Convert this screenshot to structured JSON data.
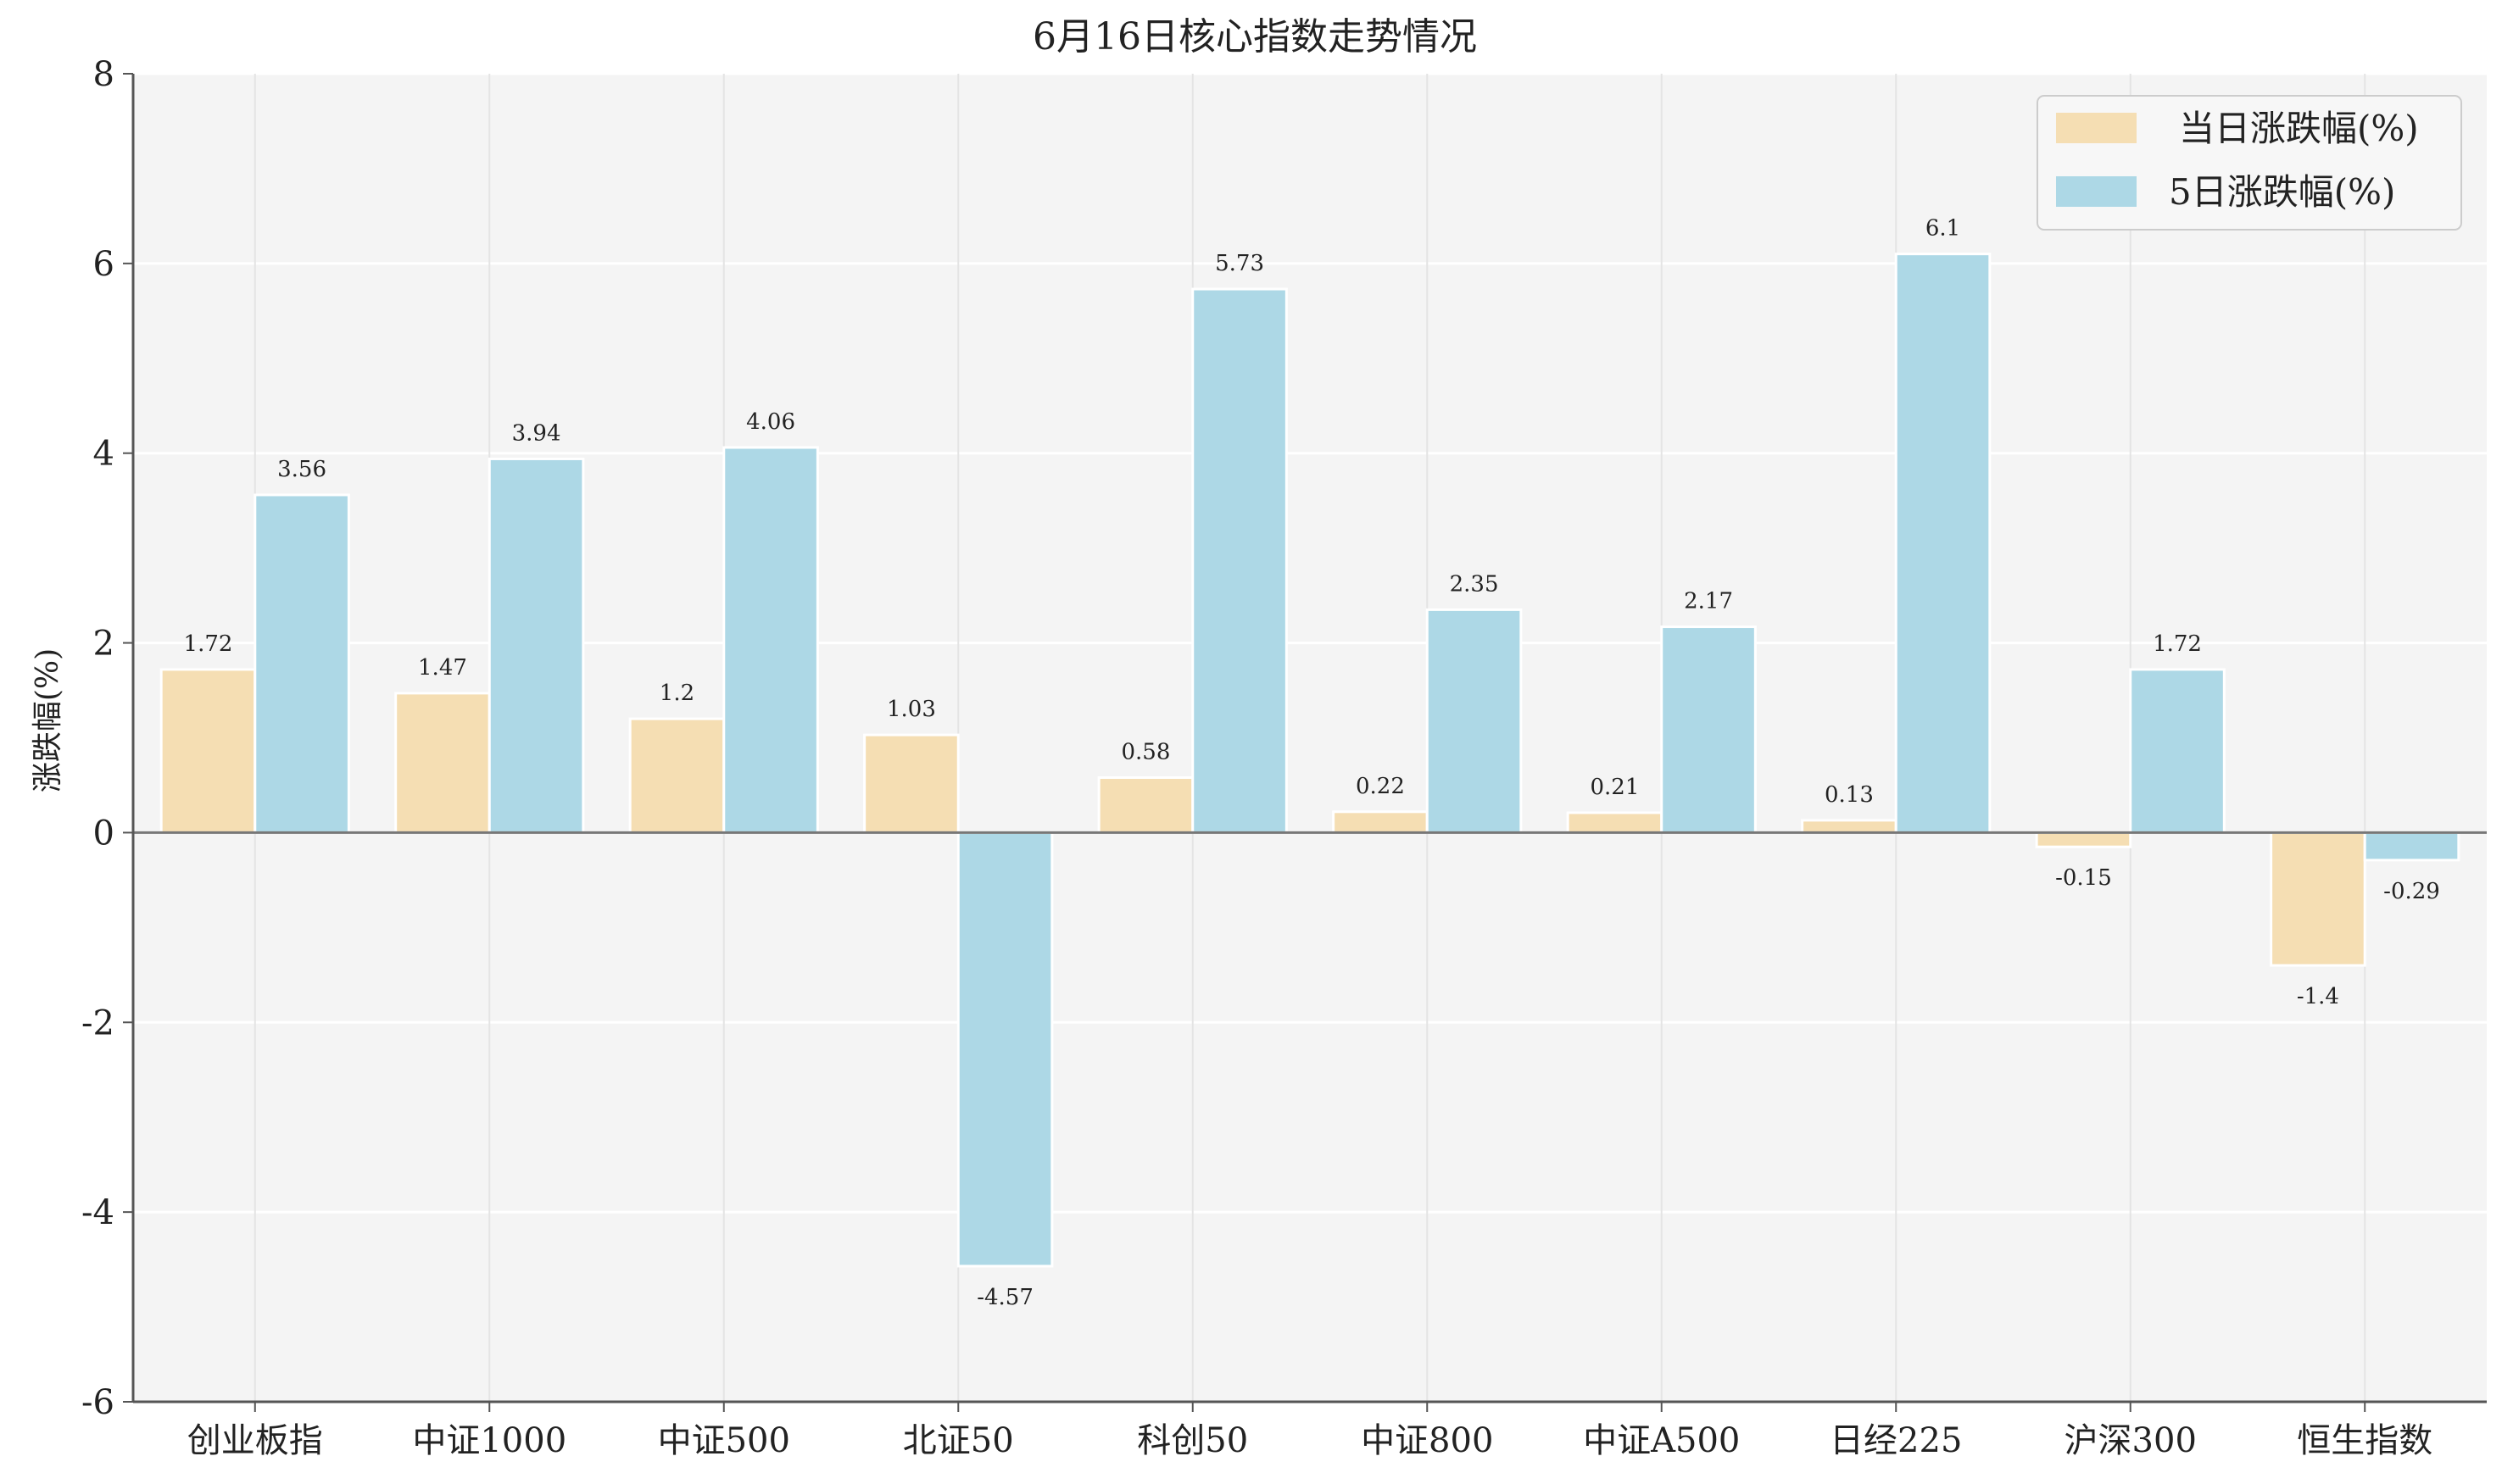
{
  "chart_data": {
    "type": "bar",
    "title": "6月16日核心指数走势情况",
    "xlabel": "",
    "ylabel": "涨跌幅(%)",
    "ylim": [
      -6,
      8
    ],
    "yticks": [
      8,
      6,
      4,
      2,
      0,
      -2,
      -4,
      -6
    ],
    "grid": true,
    "legend_position": "top-right",
    "categories": [
      "创业板指",
      "中证1000",
      "中证500",
      "北证50",
      "科创50",
      "中证800",
      "中证A500",
      "日经225",
      "沪深300",
      "恒生指数"
    ],
    "series": [
      {
        "name": "当日涨跌幅(%)",
        "color": "#f5deb3",
        "values": [
          1.72,
          1.47,
          1.2,
          1.03,
          0.58,
          0.22,
          0.21,
          0.13,
          -0.15,
          -1.4
        ]
      },
      {
        "name": "5日涨跌幅(%)",
        "color": "#add8e6",
        "values": [
          3.56,
          3.94,
          4.06,
          -4.57,
          5.73,
          2.35,
          2.17,
          6.1,
          1.72,
          -0.29
        ]
      }
    ]
  }
}
